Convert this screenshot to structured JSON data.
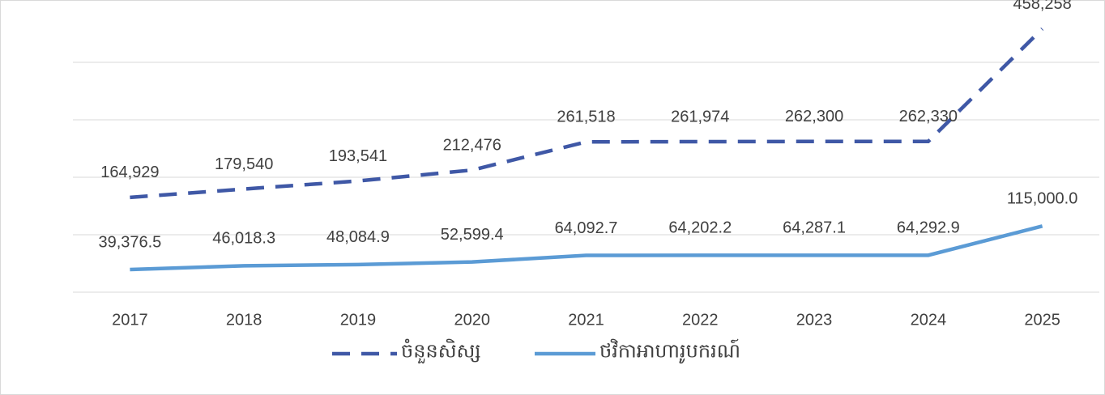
{
  "chart_data": {
    "type": "line",
    "categories": [
      "2017",
      "2018",
      "2019",
      "2020",
      "2021",
      "2022",
      "2023",
      "2024",
      "2025"
    ],
    "series": [
      {
        "name": "ចំនួនសិស្ស",
        "color": "#3f58a6",
        "dash": true,
        "values": [
          164929,
          179540,
          193541,
          212476,
          261518,
          261974,
          262300,
          262330,
          458258
        ],
        "value_labels": [
          "164,929",
          "179,540",
          "193,541",
          "212,476",
          "261,518",
          "261,974",
          "262,300",
          "262,330",
          "458,258"
        ]
      },
      {
        "name": "ថវិកាអាហារូបករណ៍",
        "color": "#5b9bd5",
        "dash": false,
        "values": [
          39376.5,
          46018.3,
          48084.9,
          52599.4,
          64092.7,
          64202.2,
          64287.1,
          64292.9,
          115000.0
        ],
        "value_labels": [
          "39,376.5",
          "46,018.3",
          "48,084.9",
          "52,599.4",
          "64,092.7",
          "64,202.2",
          "64,287.1",
          "64,292.9",
          "115,000.0"
        ]
      }
    ],
    "ylim": [
      0,
      500000
    ],
    "yticks": [
      0,
      100000,
      200000,
      300000,
      400000
    ],
    "grid": true,
    "legend": "bottom"
  }
}
